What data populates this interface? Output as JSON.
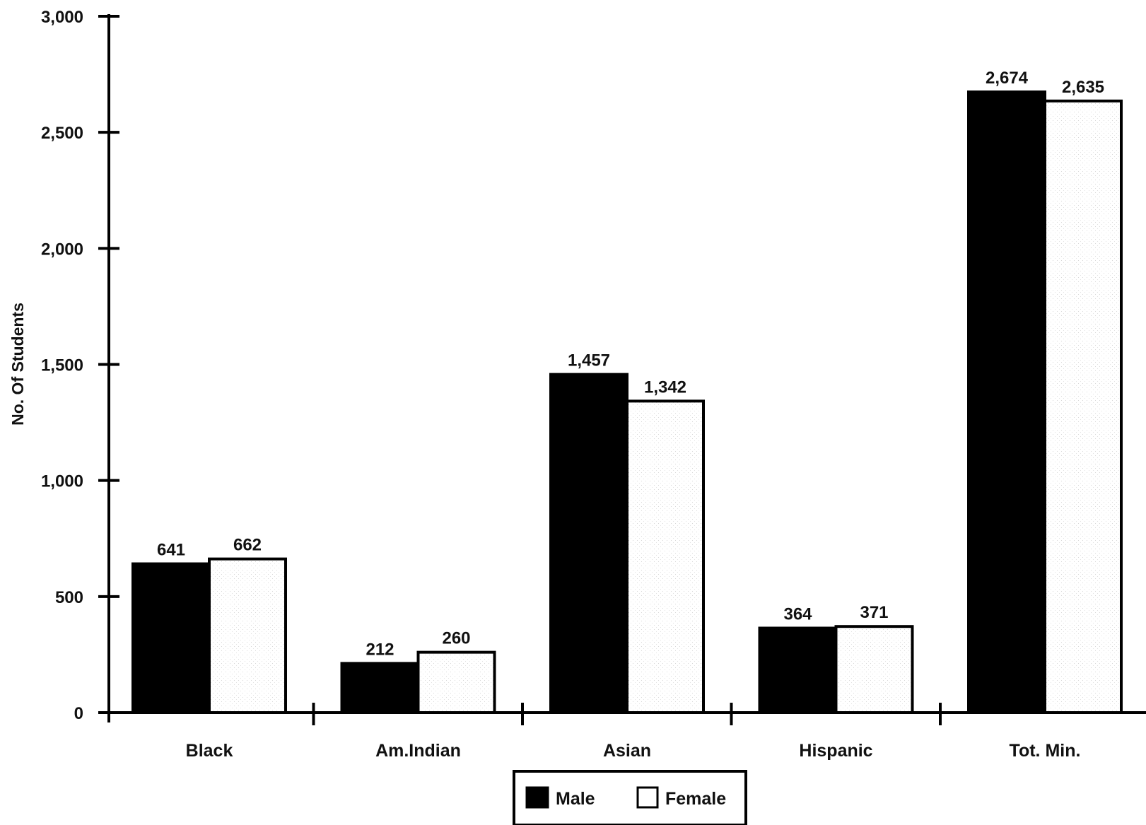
{
  "chart_data": {
    "type": "bar",
    "title": "",
    "xlabel": "",
    "ylabel": "No. Of Students",
    "ylim": [
      0,
      3000
    ],
    "yticks": [
      0,
      500,
      1000,
      1500,
      2000,
      2500,
      3000
    ],
    "ytick_labels": [
      "0",
      "500",
      "1,000",
      "1,500",
      "2,000",
      "2,500",
      "3,000"
    ],
    "categories": [
      "Black",
      "Am.Indian",
      "Asian",
      "Hispanic",
      "Tot. Min."
    ],
    "series": [
      {
        "name": "Male",
        "values": [
          641,
          212,
          1457,
          364,
          2674
        ],
        "labels": [
          "641",
          "212",
          "1,457",
          "364",
          "2,674"
        ],
        "color": "#000000"
      },
      {
        "name": "Female",
        "values": [
          662,
          260,
          1342,
          371,
          2635
        ],
        "labels": [
          "662",
          "260",
          "1,342",
          "371",
          "2,635"
        ],
        "color": "#ffffff"
      }
    ],
    "legend": {
      "position": "bottom-center",
      "entries": [
        "Male",
        "Female"
      ]
    },
    "grid": false
  }
}
